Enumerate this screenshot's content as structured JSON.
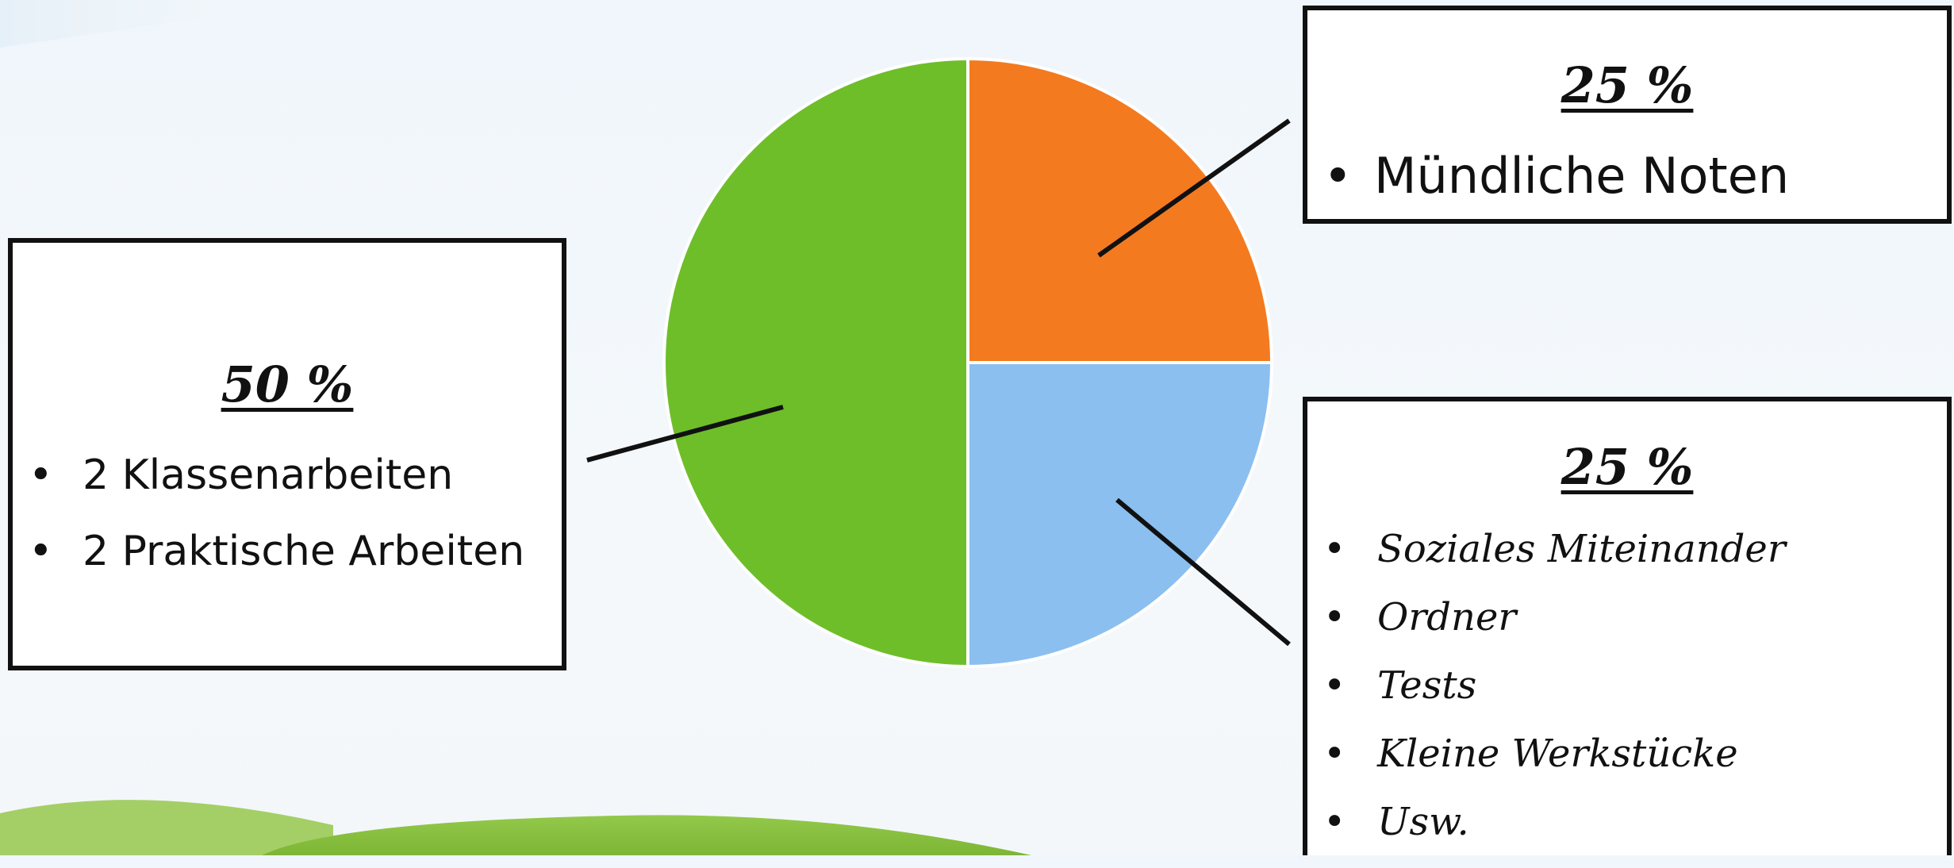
{
  "colors": {
    "green": "#6ebe29",
    "orange": "#f47a1f",
    "light_blue": "#8bbfef",
    "border": "#111111",
    "hill": "#8cc63f"
  },
  "chart_data": {
    "type": "pie",
    "slices": [
      {
        "label": "Mündliche Noten",
        "value": 25,
        "color": "#f47a1f"
      },
      {
        "label": "Soziales Miteinander, Ordner, Tests, Kleine Werkstücke, Usw.",
        "value": 25,
        "color": "#8bbfef"
      },
      {
        "label": "2 Klassenarbeiten, 2 Praktische Arbeiten",
        "value": 50,
        "color": "#6ebe29"
      }
    ]
  },
  "callouts": {
    "left": {
      "percent": "50 %",
      "items": [
        "2 Klassenarbeiten",
        "2 Praktische Arbeiten"
      ]
    },
    "top_right": {
      "percent": "25 %",
      "items": [
        "Mündliche Noten"
      ]
    },
    "bottom_right": {
      "percent": "25 %",
      "items": [
        "Soziales Miteinander",
        "Ordner",
        "Tests",
        "Kleine Werkstücke",
        "Usw."
      ]
    }
  },
  "bullet": "•"
}
